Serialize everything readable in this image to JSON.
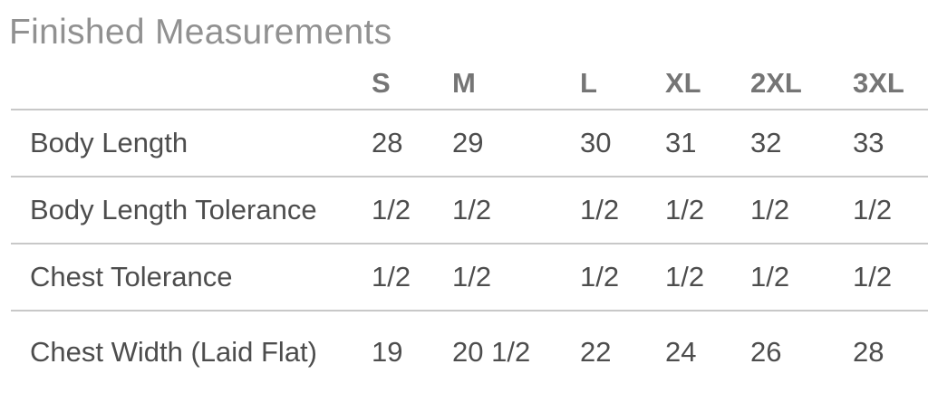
{
  "section": {
    "title": "Finished Measurements"
  },
  "chart_data": {
    "type": "table",
    "title": "Finished Measurements",
    "columns": [
      "S",
      "M",
      "L",
      "XL",
      "2XL",
      "3XL"
    ],
    "rows": [
      {
        "label": "Body Length",
        "values": [
          "28",
          "29",
          "30",
          "31",
          "32",
          "33"
        ]
      },
      {
        "label": "Body Length Tolerance",
        "values": [
          "1/2",
          "1/2",
          "1/2",
          "1/2",
          "1/2",
          "1/2"
        ]
      },
      {
        "label": "Chest Tolerance",
        "values": [
          "1/2",
          "1/2",
          "1/2",
          "1/2",
          "1/2",
          "1/2"
        ]
      },
      {
        "label": "Chest Width (Laid Flat)",
        "values": [
          "19",
          "20 1/2",
          "22",
          "24",
          "26",
          "28"
        ]
      }
    ],
    "layout": {
      "header_row": true,
      "row_dividers": true,
      "alignment": "left"
    }
  },
  "colors": {
    "background": "#ffffff",
    "title_text": "#919191",
    "header_text": "#757575",
    "body_text": "#4d4d4d",
    "divider": "#c8c8c8"
  }
}
